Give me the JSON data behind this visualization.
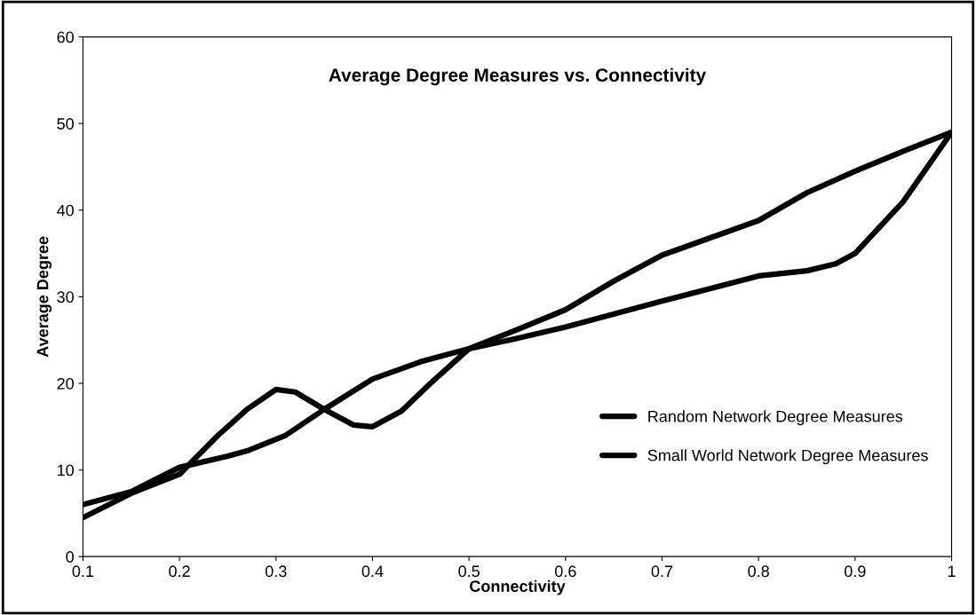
{
  "chart_data": {
    "type": "line",
    "title": "Average Degree Measures vs. Connectivity",
    "xlabel": "Connectivity",
    "ylabel": "Average Degree",
    "xlim": [
      0.1,
      1
    ],
    "xticks": [
      0.1,
      0.2,
      0.3,
      0.4,
      0.5,
      0.6,
      0.7,
      0.8,
      0.9,
      1
    ],
    "ylim": [
      0,
      60
    ],
    "yticks": [
      0,
      10,
      20,
      30,
      40,
      50,
      60
    ],
    "grid": false,
    "legend": "right",
    "marker": "none",
    "line_style": "solid",
    "series": [
      {
        "name": "Random Network Degree Measures",
        "color": "#000000",
        "x": [
          0.1,
          0.15,
          0.2,
          0.25,
          0.27,
          0.31,
          0.35,
          0.4,
          0.45,
          0.5,
          0.55,
          0.6,
          0.7,
          0.8,
          0.85,
          0.88,
          0.9,
          0.95,
          1
        ],
        "values": [
          6,
          7.5,
          10.3,
          11.6,
          12.2,
          14,
          17,
          20.5,
          22.5,
          24,
          25.2,
          26.5,
          29.5,
          32.4,
          33,
          33.8,
          35,
          41,
          49
        ]
      },
      {
        "name": "Small World Network Degree Measures",
        "color": "#000000",
        "x": [
          0.1,
          0.15,
          0.2,
          0.24,
          0.27,
          0.3,
          0.32,
          0.35,
          0.38,
          0.4,
          0.43,
          0.46,
          0.5,
          0.55,
          0.6,
          0.65,
          0.7,
          0.75,
          0.8,
          0.85,
          0.9,
          0.95,
          1
        ],
        "values": [
          4.5,
          7.3,
          9.5,
          14,
          17,
          19.3,
          19,
          17,
          15.2,
          15,
          16.8,
          20,
          24,
          26.2,
          28.5,
          31.8,
          34.8,
          36.8,
          38.8,
          42,
          44.5,
          46.8,
          49
        ]
      }
    ]
  }
}
